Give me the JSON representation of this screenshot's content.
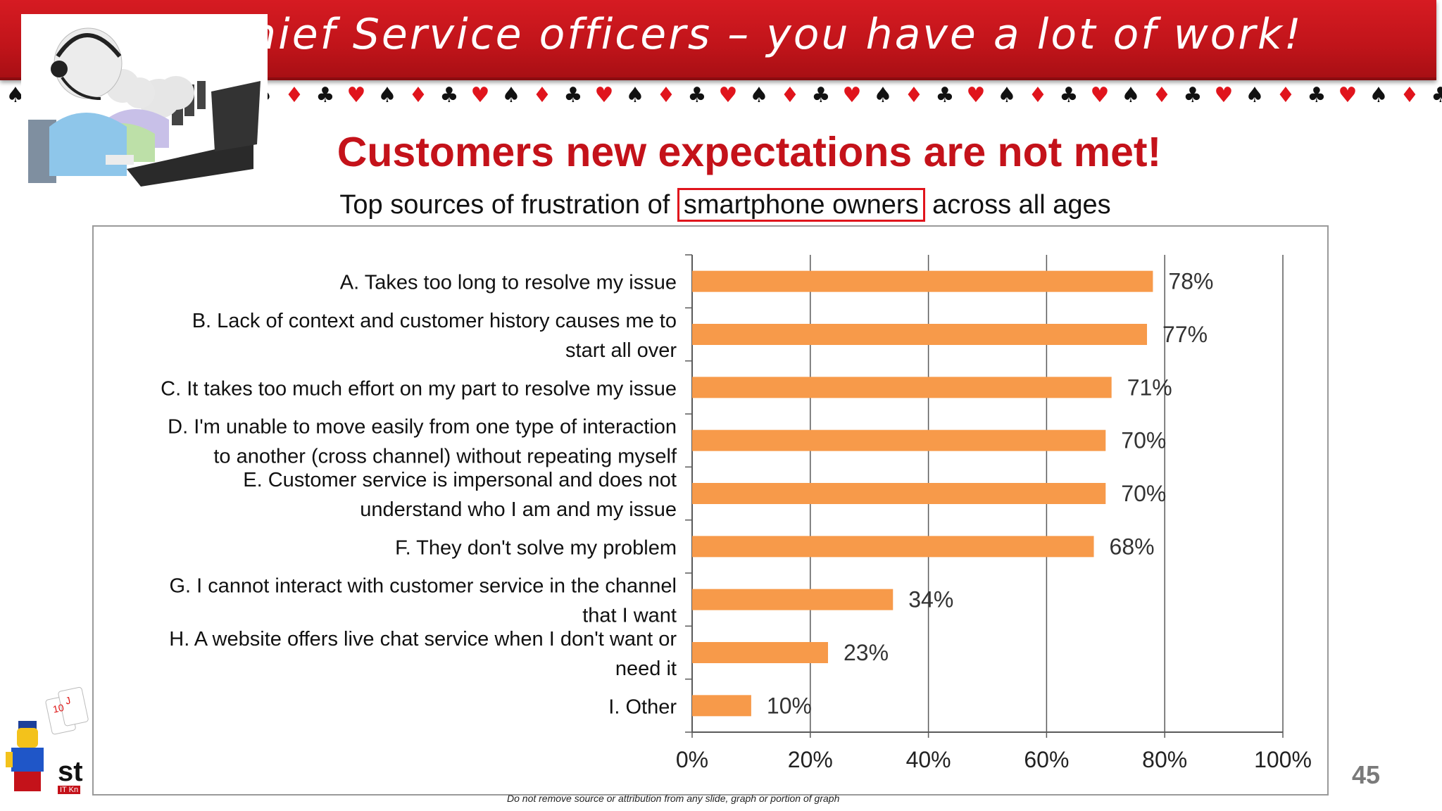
{
  "banner": {
    "title": "Chief Service officers – you have a lot of work!"
  },
  "subtitle": "Customers new expectations are not met!",
  "chart_heading": {
    "before": "Top sources of frustration of",
    "highlight": "smartphone owners",
    "after": "across all ages"
  },
  "page_number": "45",
  "footnote": "Do not remove source or attribution from any slide, graph or portion of graph",
  "logo_text": "st",
  "logo_subtext": "IT Kn",
  "colors": {
    "banner": "#c8141b",
    "subtitle": "#c4121a",
    "bar": "#f79a4a",
    "highlight_box": "#e0141c"
  },
  "chart_data": {
    "type": "bar",
    "orientation": "horizontal",
    "title": "Top sources of frustration of smartphone owners across all ages",
    "categories": [
      [
        "A. Takes too long to resolve my issue"
      ],
      [
        "B. Lack of context and customer history causes me to",
        "start all over"
      ],
      [
        "C. It takes too much effort on my part to resolve my issue"
      ],
      [
        "D. I'm unable to move easily from one type of interaction",
        "to another (cross channel) without repeating myself"
      ],
      [
        "E. Customer service is impersonal and does not",
        "understand who I am and my issue"
      ],
      [
        "F. They don't solve my problem"
      ],
      [
        "G. I cannot interact with customer service in the channel",
        "that I want"
      ],
      [
        "H. A website offers live chat service when I don't want or",
        "need it"
      ],
      [
        "I. Other"
      ]
    ],
    "values": [
      78,
      77,
      71,
      70,
      70,
      68,
      34,
      23,
      10
    ],
    "value_labels": [
      "78%",
      "77%",
      "71%",
      "70%",
      "70%",
      "68%",
      "34%",
      "23%",
      "10%"
    ],
    "xlim": [
      0,
      100
    ],
    "xticks": [
      "0%",
      "20%",
      "40%",
      "60%",
      "80%",
      "100%"
    ],
    "grid": "vertical"
  }
}
